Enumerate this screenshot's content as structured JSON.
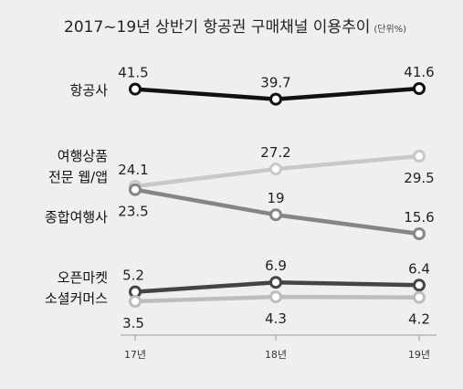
{
  "chart_data": {
    "type": "line",
    "title": "2017~19년 상반기 항공권 구매채널 이용추이",
    "unit": "(단위%)",
    "categories": [
      "17년",
      "18년",
      "19년"
    ],
    "ylim": [
      0,
      50
    ],
    "grid": false,
    "series": [
      {
        "name": "항공사",
        "values": [
          41.5,
          39.7,
          41.6
        ],
        "color": "#111111",
        "labels": [
          "41.5",
          "39.7",
          "41.6"
        ],
        "label_pos": [
          "above",
          "above",
          "above"
        ]
      },
      {
        "name": "여행상품 전문 웹/앱",
        "name_lines": [
          "여행상품",
          "전문 웹/앱"
        ],
        "values": [
          24.1,
          27.2,
          29.5
        ],
        "color": "#c8c8c8",
        "labels": [
          "24.1",
          "27.2",
          "29.5"
        ],
        "label_pos": [
          "above",
          "above",
          "below"
        ]
      },
      {
        "name": "종합여행사",
        "values": [
          23.5,
          19,
          15.6
        ],
        "color": "#858585",
        "labels": [
          "23.5",
          "19",
          "15.6"
        ],
        "label_pos": [
          "below",
          "above",
          "above"
        ]
      },
      {
        "name": "오픈마켓 소셜커머스",
        "name_lines": [
          "오픈마켓",
          "소셜커머스"
        ],
        "values": [
          5.2,
          6.9,
          6.4
        ],
        "color": "#444444",
        "labels": [
          "5.2",
          "6.9",
          "6.4"
        ],
        "label_pos": [
          "above",
          "above",
          "above"
        ]
      },
      {
        "name": "",
        "values": [
          3.5,
          4.3,
          4.2
        ],
        "color": "#bdbdbd",
        "labels": [
          "3.5",
          "4.3",
          "4.2"
        ],
        "label_pos": [
          "below",
          "below",
          "below"
        ]
      }
    ]
  }
}
